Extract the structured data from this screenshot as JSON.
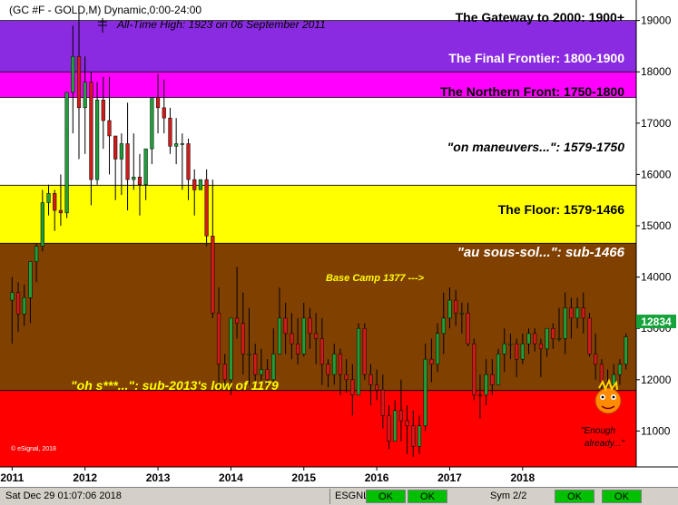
{
  "header": {
    "symbol_line": "(GC #F - GOLD,M) Dynamic,0:00-24:00",
    "ath_line": "All-Time High:  1923 on 06 September 2011"
  },
  "colors": {
    "purple": "#8a2be2",
    "magenta": "#ff00ff",
    "white": "#ffffff",
    "yellow": "#ffff00",
    "brown": "#804000",
    "red": "#ff0000",
    "up_candle": "#1f9e3a",
    "down_candle": "#d11a1a",
    "price_tag": "#17a33c"
  },
  "chart_data": {
    "type": "candlestick",
    "title": "(GC #F - GOLD,M) Dynamic,0:00-24:00",
    "ylim": [
      10300,
      19400
    ],
    "y_ticks": [
      "19000",
      "18000",
      "17000",
      "16000",
      "15000",
      "14000",
      "13000",
      "12000",
      "11000"
    ],
    "x_ticks": [
      "2011",
      "2012",
      "2013",
      "2014",
      "2015",
      "2016",
      "2017",
      "2018"
    ],
    "current_price": "12834",
    "zones": [
      {
        "label": "The Gateway to 2000:  1900+",
        "from": 19000,
        "to": 19400,
        "color": "#ffffff",
        "text_color": "#000000",
        "italic": false
      },
      {
        "label": "The Final Frontier:  1800-1900",
        "from": 18000,
        "to": 19000,
        "color": "#8a2be2",
        "text_color": "#ffffff",
        "italic": false
      },
      {
        "label": "The Northern Front:  1750-1800",
        "from": 17500,
        "to": 18000,
        "color": "#ff00ff",
        "text_color": "#000000",
        "italic": false
      },
      {
        "label": "\"on maneuvers...\":  1579-1750",
        "from": 15790,
        "to": 17500,
        "color": "#ffffff",
        "text_color": "#000000",
        "italic": true
      },
      {
        "label": "The Floor:  1579-1466",
        "from": 14660,
        "to": 15790,
        "color": "#ffff00",
        "text_color": "#000000",
        "italic": false
      },
      {
        "label": "\"au sous-sol...\":  sub-1466",
        "from": 11790,
        "to": 14660,
        "color": "#804000",
        "text_color": "#ffffff",
        "italic": true
      },
      {
        "label": "\"oh s***...\":  sub-2013's low of 1179",
        "from": 10300,
        "to": 11790,
        "color": "#ff0000",
        "text_color": "#ffff00",
        "italic": true
      }
    ],
    "annotations": [
      {
        "text": "Base Camp 1377 --->",
        "color": "#ffff00"
      },
      {
        "text": "\"Enough",
        "color": "#000000"
      },
      {
        "text": "already...\"",
        "color": "#000000"
      },
      {
        "text": "© eSignal, 2018",
        "color": "#ffffff"
      }
    ],
    "candles": [
      [
        13550,
        14000,
        13700,
        12700
      ],
      [
        13700,
        13900,
        13280,
        12930
      ],
      [
        13280,
        13850,
        13600,
        13050
      ],
      [
        13600,
        14200,
        14300,
        13100
      ],
      [
        14300,
        14650,
        14600,
        13900
      ],
      [
        14600,
        15700,
        15450,
        14500
      ],
      [
        15450,
        15800,
        15630,
        15200
      ],
      [
        15630,
        15700,
        15300,
        14900
      ],
      [
        15300,
        16000,
        15250,
        15000
      ],
      [
        15250,
        17600,
        17600,
        15150
      ],
      [
        17600,
        18900,
        18300,
        16800
      ],
      [
        18300,
        19230,
        17300,
        16300
      ],
      [
        17300,
        18300,
        17800,
        16400
      ],
      [
        17800,
        18000,
        15900,
        15400
      ],
      [
        15900,
        17800,
        17450,
        15800
      ],
      [
        17450,
        17900,
        17050,
        16500
      ],
      [
        17050,
        17900,
        16750,
        16000
      ],
      [
        16750,
        16700,
        16300,
        15500
      ],
      [
        16300,
        16800,
        16600,
        15600
      ],
      [
        16600,
        17400,
        15900,
        15300
      ],
      [
        15900,
        16800,
        15950,
        15700
      ],
      [
        15950,
        16400,
        15800,
        15200
      ],
      [
        15800,
        16500,
        16500,
        15500
      ],
      [
        16500,
        17500,
        17500,
        16200
      ],
      [
        17500,
        17960,
        17300,
        16800
      ],
      [
        17300,
        17850,
        17100,
        16800
      ],
      [
        17100,
        17300,
        16550,
        16400
      ],
      [
        16550,
        17100,
        16600,
        16200
      ],
      [
        16600,
        16800,
        16600,
        15700
      ],
      [
        16600,
        16700,
        15900,
        15500
      ],
      [
        15900,
        16100,
        15700,
        15200
      ],
      [
        15700,
        15900,
        15900,
        15700
      ],
      [
        15900,
        16100,
        14800,
        14600
      ],
      [
        14800,
        15900,
        13300,
        13200
      ],
      [
        13300,
        13800,
        12300,
        11800
      ],
      [
        12300,
        12500,
        12000,
        11800
      ],
      [
        12000,
        13100,
        13200,
        11700
      ],
      [
        13200,
        14200,
        13100,
        12800
      ],
      [
        13100,
        13700,
        12500,
        12100
      ],
      [
        12500,
        13400,
        12500,
        11900
      ],
      [
        12500,
        12700,
        12100,
        11900
      ],
      [
        12100,
        12600,
        12200,
        11800
      ],
      [
        12200,
        12400,
        12000,
        11800
      ],
      [
        12000,
        13000,
        12500,
        11950
      ],
      [
        12500,
        13800,
        13200,
        12500
      ],
      [
        13200,
        13500,
        12900,
        12500
      ],
      [
        12900,
        13300,
        12700,
        12400
      ],
      [
        12700,
        13200,
        12500,
        12300
      ],
      [
        12500,
        13500,
        13200,
        12450
      ],
      [
        13200,
        13400,
        12900,
        12600
      ],
      [
        12900,
        13300,
        12800,
        12300
      ],
      [
        12800,
        13200,
        12300,
        11900
      ],
      [
        12300,
        12400,
        12100,
        11850
      ],
      [
        12100,
        12700,
        12500,
        11900
      ],
      [
        12500,
        12600,
        12100,
        11700
      ],
      [
        12100,
        12400,
        12000,
        11750
      ],
      [
        12000,
        12300,
        11700,
        11300
      ],
      [
        11700,
        13100,
        13000,
        11700
      ],
      [
        13000,
        13100,
        12100,
        12000
      ],
      [
        12100,
        12300,
        11900,
        11500
      ],
      [
        11900,
        12200,
        11800,
        11600
      ],
      [
        11800,
        12100,
        11300,
        11050
      ],
      [
        11300,
        11500,
        10800,
        10650
      ],
      [
        10800,
        11600,
        11400,
        10800
      ],
      [
        11400,
        12000,
        11200,
        10800
      ],
      [
        11200,
        11500,
        11100,
        10550
      ],
      [
        11100,
        11400,
        10700,
        10500
      ],
      [
        10700,
        11300,
        11100,
        10550
      ],
      [
        11100,
        12700,
        12400,
        11000
      ],
      [
        12400,
        12800,
        12300,
        11950
      ],
      [
        12300,
        13100,
        12900,
        12150
      ],
      [
        12900,
        13700,
        13200,
        12500
      ],
      [
        13200,
        13800,
        13550,
        13000
      ],
      [
        13550,
        13750,
        13300,
        13050
      ],
      [
        13300,
        13500,
        13300,
        12900
      ],
      [
        13300,
        13500,
        12700,
        12650
      ],
      [
        12700,
        12800,
        11700,
        11600
      ],
      [
        11700,
        12100,
        11700,
        11250
      ],
      [
        11700,
        12400,
        12100,
        11500
      ],
      [
        12100,
        12400,
        11900,
        11700
      ],
      [
        11900,
        12600,
        12500,
        11900
      ],
      [
        12500,
        13000,
        12700,
        12150
      ],
      [
        12700,
        12900,
        12700,
        12400
      ],
      [
        12700,
        12800,
        12400,
        12050
      ],
      [
        12400,
        12900,
        12700,
        12300
      ],
      [
        12700,
        13000,
        12900,
        12500
      ],
      [
        12900,
        13000,
        12700,
        12550
      ],
      [
        12700,
        12800,
        12600,
        12050
      ],
      [
        12600,
        13000,
        13000,
        12450
      ],
      [
        13000,
        13100,
        12800,
        12600
      ],
      [
        12800,
        13400,
        12800,
        12750
      ],
      [
        12800,
        13700,
        13400,
        12500
      ],
      [
        13400,
        13600,
        13200,
        12800
      ],
      [
        13200,
        13600,
        13400,
        13000
      ],
      [
        13400,
        13700,
        13200,
        12900
      ],
      [
        13200,
        13300,
        12500,
        12450
      ],
      [
        12500,
        12900,
        12300,
        12000
      ],
      [
        12300,
        12400,
        11950,
        11800
      ],
      [
        11950,
        12200,
        11900,
        11600
      ],
      [
        11900,
        12300,
        12100,
        11700
      ],
      [
        12100,
        12400,
        12300,
        11900
      ],
      [
        12300,
        12900,
        12834,
        12200
      ]
    ]
  },
  "statusbar": {
    "datetime": "Sat Dec 29 01:07:06 2018",
    "esgnl_label": "ESGNL:",
    "ok1": "OK",
    "ok2": "OK",
    "sym": "Sym 2/2",
    "ok3": "OK",
    "ok4": "OK"
  }
}
